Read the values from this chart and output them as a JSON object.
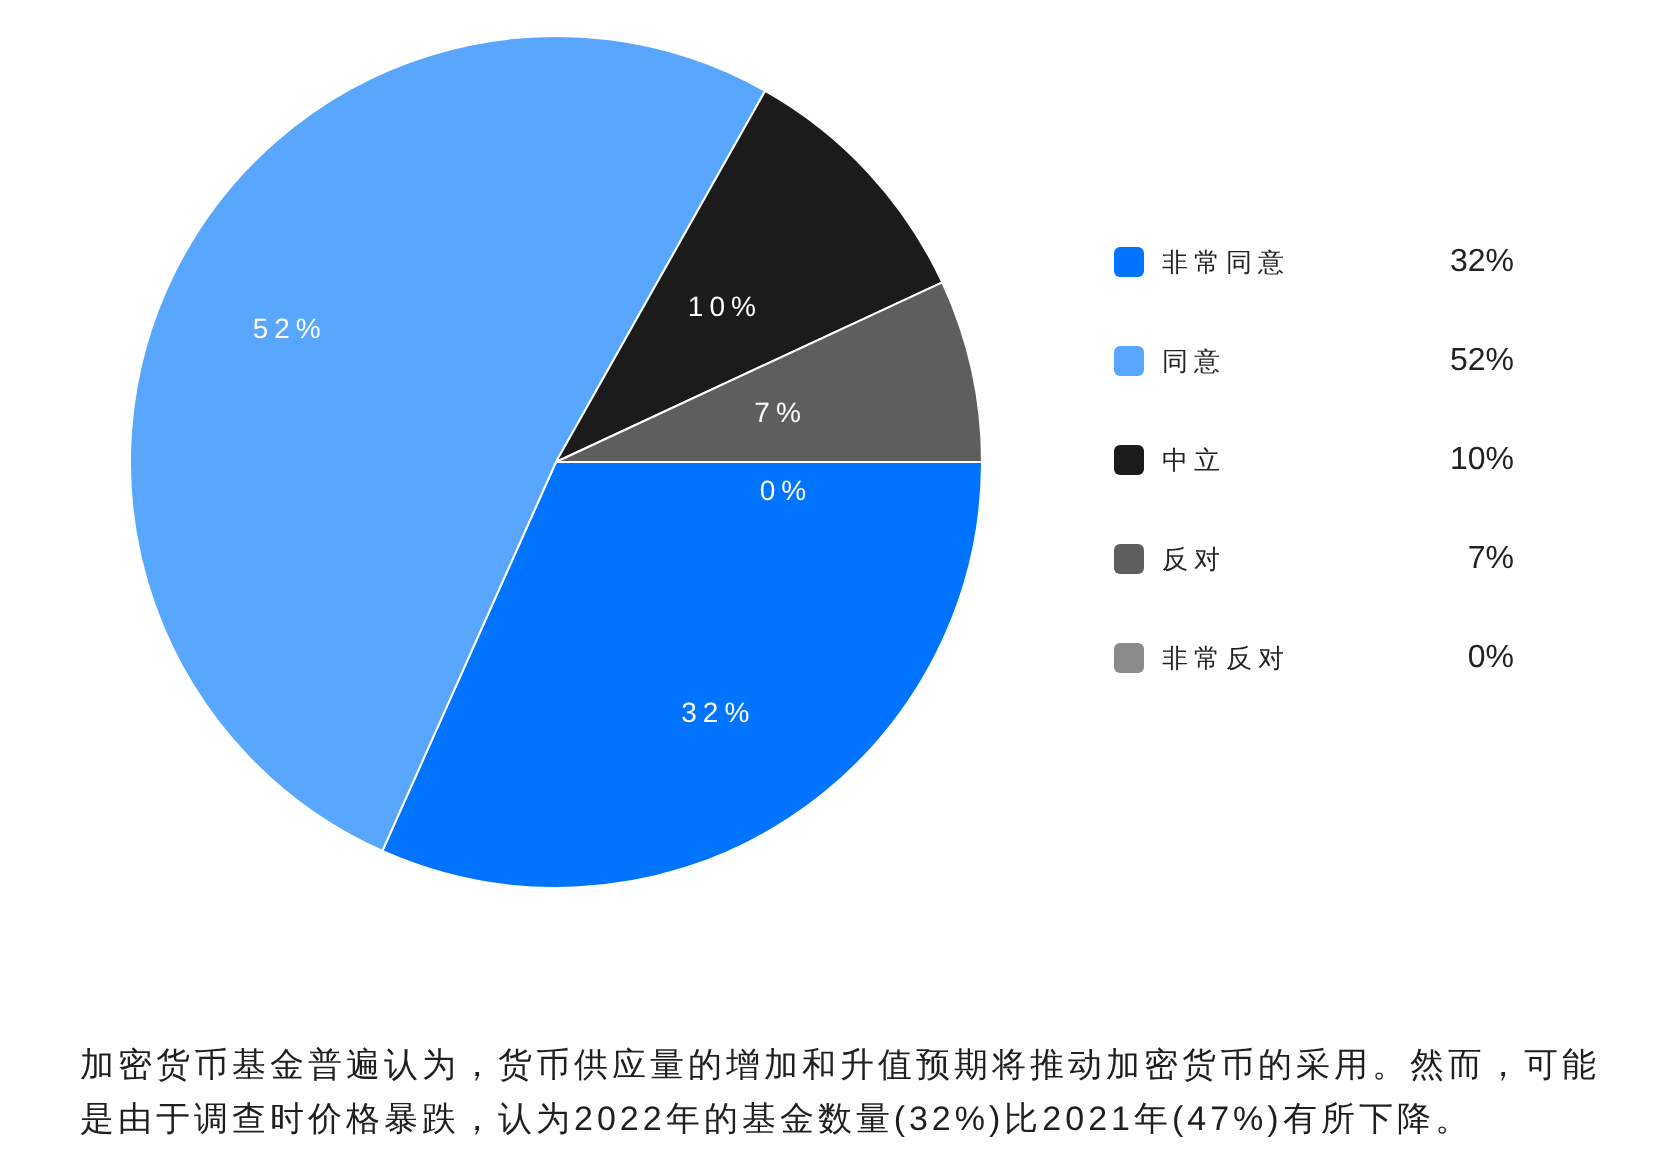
{
  "chart_data": {
    "type": "pie",
    "categories": [
      "非常同意",
      "同意",
      "中立",
      "反对",
      "非常反对"
    ],
    "values": [
      32,
      52,
      10,
      7,
      0
    ],
    "colors": [
      "#0074ff",
      "#58a6ff",
      "#1b1b1b",
      "#5e5e5e",
      "#8a8a8a"
    ],
    "value_labels": [
      "32%",
      "52%",
      "10%",
      "7%",
      "0%"
    ],
    "legend": "right",
    "annotations": [
      "加密货币基金普遍认为，货币供应量的增加和升值预期将推动加密货币的采用。然而，可能是由于调查时价格暴跌，认为2022年的基金数量(32%)比2021年(47%)有所下降。"
    ]
  }
}
